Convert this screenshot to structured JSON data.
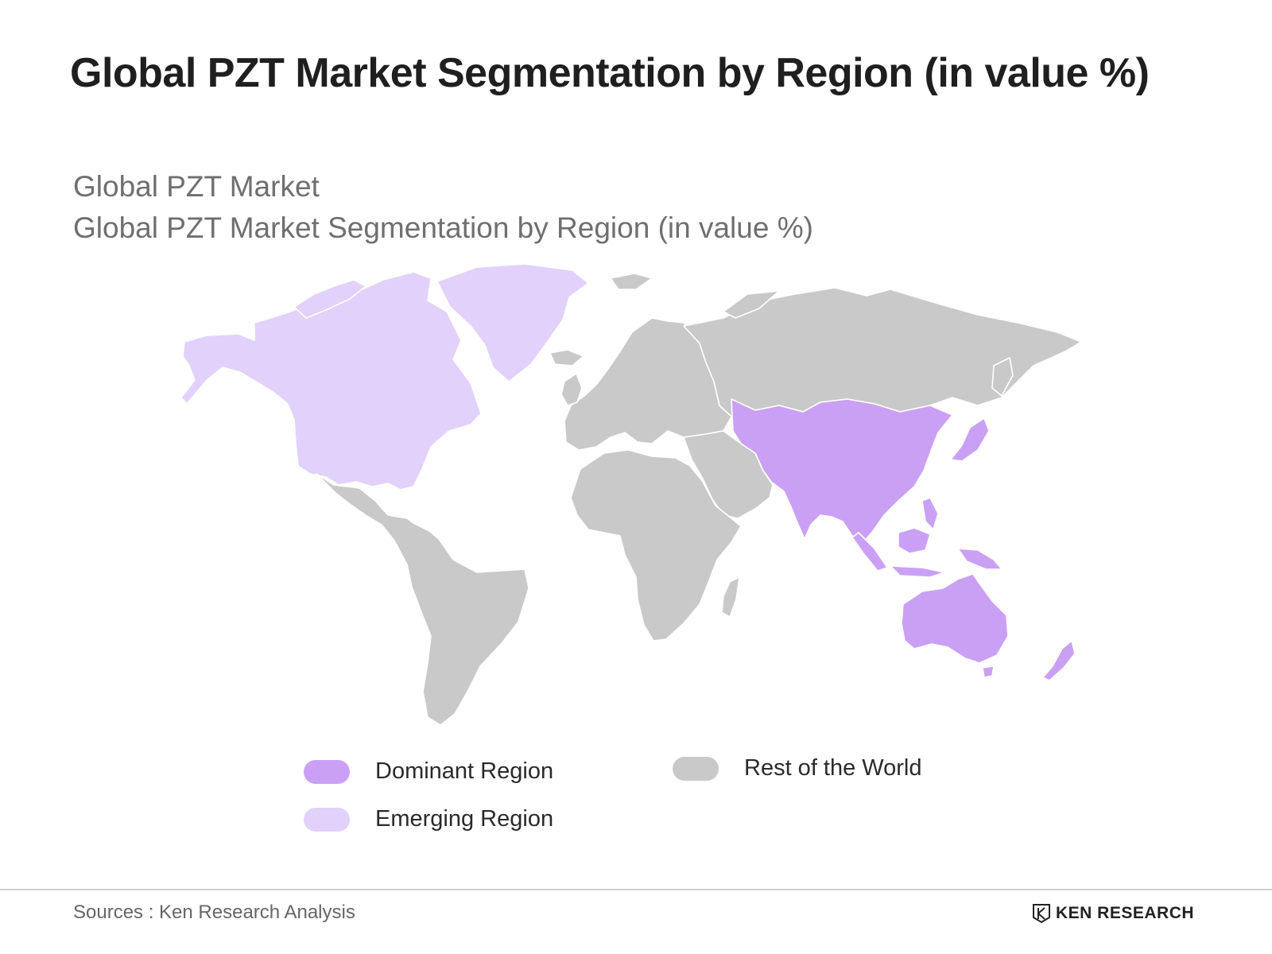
{
  "title": "Global PZT Market Segmentation by Region (in value %)",
  "subtitle_line1": "Global PZT Market",
  "subtitle_line2": "Global PZT Market Segmentation by Region (in value %)",
  "colors": {
    "dominant": "#caa0f5",
    "emerging": "#e2d1fb",
    "rest": "#c9c9c9"
  },
  "map": {
    "regions": [
      {
        "name": "North America",
        "category": "emerging"
      },
      {
        "name": "Greenland",
        "category": "emerging"
      },
      {
        "name": "Latin America",
        "category": "rest"
      },
      {
        "name": "Europe",
        "category": "rest"
      },
      {
        "name": "Russia",
        "category": "rest"
      },
      {
        "name": "Middle East",
        "category": "rest"
      },
      {
        "name": "Africa",
        "category": "rest"
      },
      {
        "name": "Asia Pacific",
        "category": "dominant"
      },
      {
        "name": "Oceania",
        "category": "dominant"
      }
    ]
  },
  "legend": {
    "dominant": "Dominant Region",
    "emerging": "Emerging Region",
    "rest": "Rest of the World"
  },
  "footer": {
    "source": "Sources : Ken Research Analysis",
    "brand": "KEN RESEARCH",
    "brand_icon": "ken-research-logo-icon"
  }
}
